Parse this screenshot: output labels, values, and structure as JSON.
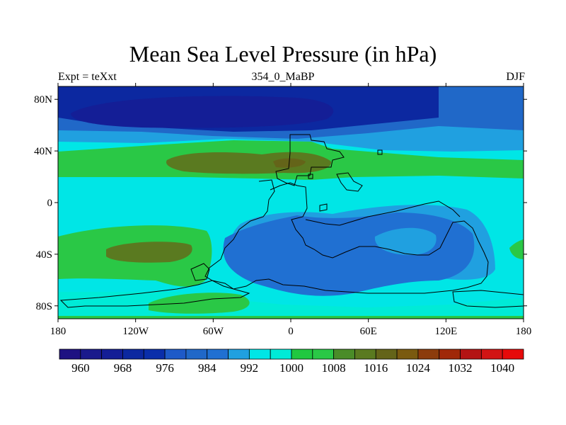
{
  "chart_data": {
    "type": "heatmap",
    "title": "Mean Sea Level Pressure (in hPa)",
    "subtitle_left": "Expt = teXxt",
    "subtitle_center": "354_0_MaBP",
    "subtitle_right": "DJF",
    "x_ticks": [
      {
        "value": -180,
        "label": "180"
      },
      {
        "value": -120,
        "label": "120W"
      },
      {
        "value": -60,
        "label": "60W"
      },
      {
        "value": 0,
        "label": "0"
      },
      {
        "value": 60,
        "label": "60E"
      },
      {
        "value": 120,
        "label": "120E"
      },
      {
        "value": 180,
        "label": "180"
      }
    ],
    "y_ticks": [
      {
        "value": 80,
        "label": "80N"
      },
      {
        "value": 40,
        "label": "40N"
      },
      {
        "value": 0,
        "label": "0"
      },
      {
        "value": -40,
        "label": "40S"
      },
      {
        "value": -80,
        "label": "80S"
      }
    ],
    "xlim": [
      -180,
      180
    ],
    "ylim": [
      -90,
      90
    ],
    "colorbar": {
      "levels": [
        960,
        964,
        968,
        972,
        976,
        980,
        984,
        988,
        992,
        996,
        1000,
        1004,
        1008,
        1012,
        1016,
        1020,
        1024,
        1028,
        1032,
        1036,
        1040
      ],
      "colors": [
        "#1e1282",
        "#1a1a8c",
        "#141e96",
        "#0c28a0",
        "#0a2eaa",
        "#1e5ac8",
        "#2068c8",
        "#2070d2",
        "#20a0e0",
        "#00e6e6",
        "#00ebd7",
        "#20c840",
        "#2ac846",
        "#4a8c28",
        "#5a7a20",
        "#646419",
        "#7a5a10",
        "#8c3c0c",
        "#a02808",
        "#b41414",
        "#d21414",
        "#e60a0a"
      ],
      "labels": [
        "960",
        "968",
        "976",
        "984",
        "992",
        "1000",
        "1008",
        "1016",
        "1024",
        "1032",
        "1040"
      ]
    },
    "fields": [
      {
        "name": "background",
        "hpa": 1000,
        "color": "#00e6e6"
      },
      {
        "name": "northern-high-latitude-band",
        "hpa": 996,
        "color": "#20a0e0"
      },
      {
        "name": "northern-low-outer",
        "hpa": 984,
        "color": "#2068c8"
      },
      {
        "name": "northern-low-deep",
        "hpa": 976,
        "color": "#0c28a0"
      },
      {
        "name": "northern-low-core",
        "hpa": 968,
        "color": "#141e96"
      },
      {
        "name": "northern-subtropical-high",
        "hpa": 1008,
        "color": "#2ac846"
      },
      {
        "name": "northern-high-core",
        "hpa": 1012,
        "color": "#5a7a20"
      },
      {
        "name": "northern-high-core-east",
        "hpa": 1016,
        "color": "#646419"
      },
      {
        "name": "southern-subtropical-high-west",
        "hpa": 1008,
        "color": "#2ac846"
      },
      {
        "name": "southern-high-core-west",
        "hpa": 1012,
        "color": "#5a7a20"
      },
      {
        "name": "southern-subtropical-high-east",
        "hpa": 1008,
        "color": "#2ac846"
      },
      {
        "name": "supercontinent-outer",
        "hpa": 996,
        "color": "#20a0e0"
      },
      {
        "name": "supercontinent-low",
        "hpa": 988,
        "color": "#2070d2"
      },
      {
        "name": "southern-ocean-band",
        "hpa": 1004,
        "color": "#00ebd7"
      },
      {
        "name": "south-pole-low",
        "hpa": 1008,
        "color": "#2ac846"
      }
    ]
  }
}
